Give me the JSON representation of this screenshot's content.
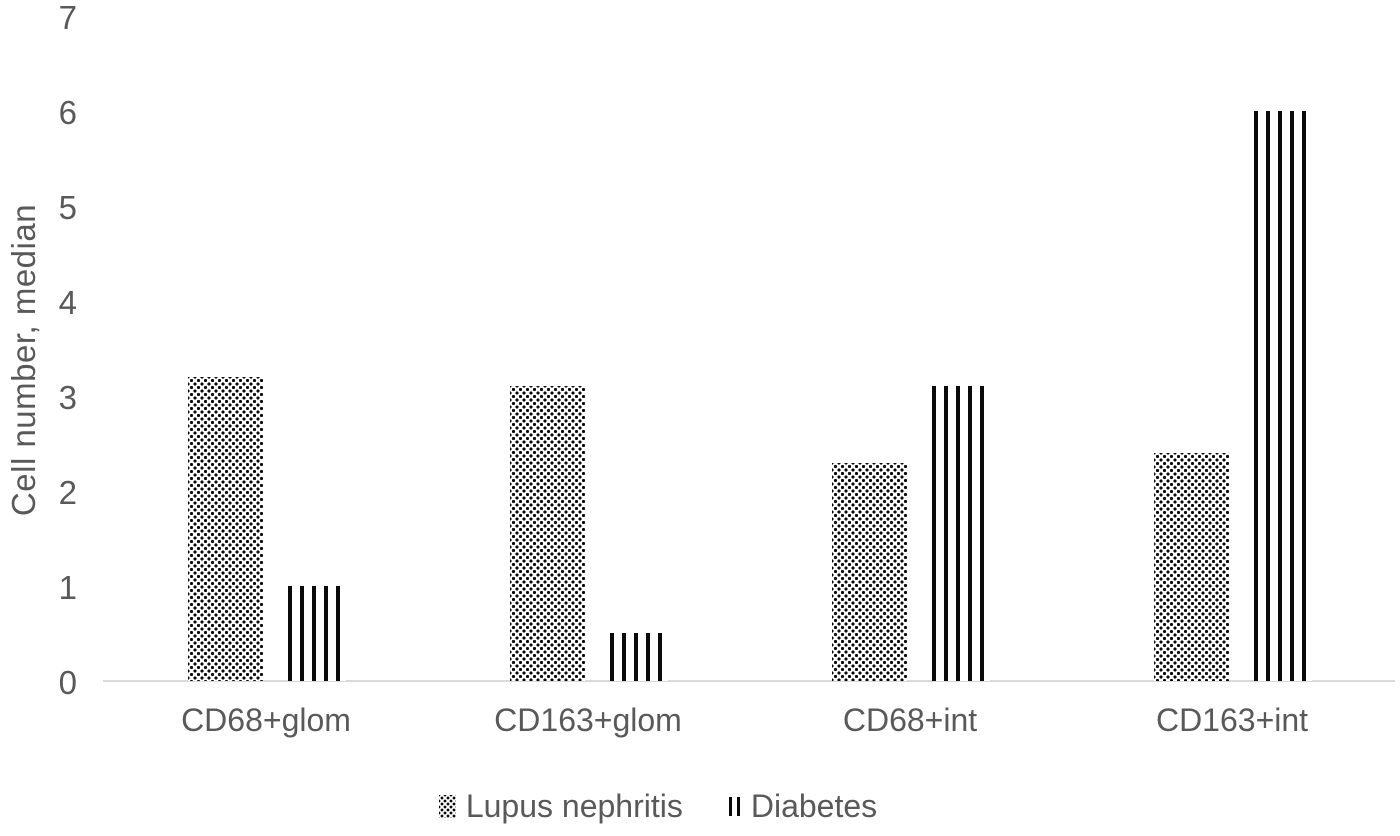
{
  "chart_data": {
    "type": "bar",
    "title": "",
    "categories": [
      "CD68+glom",
      "CD163+glom",
      "CD68+int",
      "CD163+int"
    ],
    "series": [
      {
        "name": "Lupus nephritis",
        "pattern": "dots",
        "values": [
          3.2,
          3.1,
          2.3,
          2.4
        ]
      },
      {
        "name": "Diabetes",
        "pattern": "vertical-lines",
        "values": [
          1.0,
          0.5,
          3.1,
          6.0
        ]
      }
    ],
    "xlabel": "",
    "ylabel": "Cell number, median",
    "ylim": [
      0,
      7
    ],
    "yticks": [
      0,
      1,
      2,
      3,
      4,
      5,
      6,
      7
    ],
    "grid": false,
    "legend_position": "bottom",
    "colors": {
      "pattern_fill": "#0a0a0a",
      "text": "#595959",
      "axis_line": "#d9d9d9",
      "background": "#ffffff"
    }
  }
}
